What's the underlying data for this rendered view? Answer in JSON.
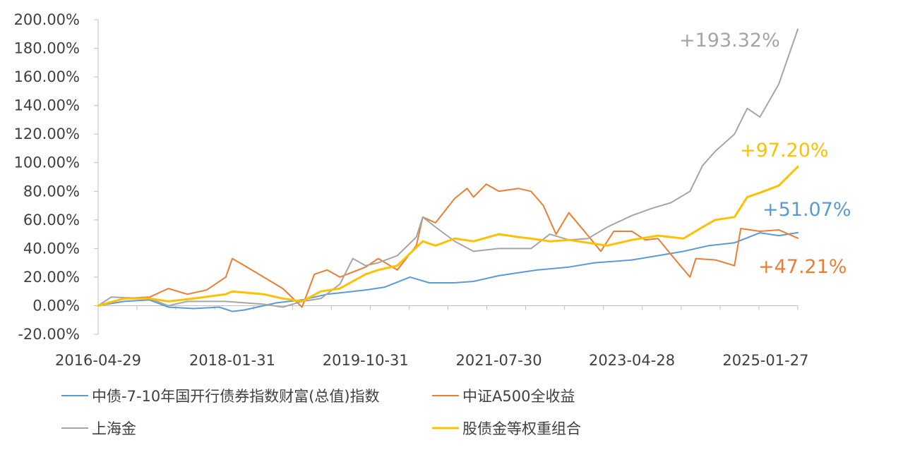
{
  "chart_data": {
    "type": "line",
    "x_start": "2016-04-29",
    "x_end": "2025-06-30",
    "x_ticks": [
      "2016-04-29",
      "2018-01-31",
      "2019-10-31",
      "2021-07-30",
      "2023-04-28",
      "2025-01-27"
    ],
    "ylim": [
      -20,
      200
    ],
    "y_ticks": [
      -20,
      0,
      20,
      40,
      60,
      80,
      100,
      120,
      140,
      160,
      180,
      200
    ],
    "y_tick_labels": [
      "-20.00%",
      "0.00%",
      "20.00%",
      "40.00%",
      "60.00%",
      "80.00%",
      "100.00%",
      "120.00%",
      "140.00%",
      "160.00%",
      "180.00%",
      "200.00%"
    ],
    "grid": false,
    "legend_position": "bottom",
    "series": [
      {
        "name": "中债-7-10年国开行债券指数财富(总值)指数",
        "color": "#5b9bd5",
        "end_label": "+51.07%",
        "points": [
          [
            "2016-04-29",
            0
          ],
          [
            "2016-08-31",
            3
          ],
          [
            "2016-12-31",
            4
          ],
          [
            "2017-03-31",
            -1
          ],
          [
            "2017-07-31",
            -2
          ],
          [
            "2017-11-30",
            -1
          ],
          [
            "2018-01-31",
            -4
          ],
          [
            "2018-03-31",
            -3
          ],
          [
            "2018-08-31",
            2
          ],
          [
            "2018-12-31",
            4
          ],
          [
            "2019-04-30",
            8
          ],
          [
            "2019-08-31",
            10
          ],
          [
            "2019-10-31",
            11
          ],
          [
            "2020-01-31",
            13
          ],
          [
            "2020-05-31",
            20
          ],
          [
            "2020-08-31",
            16
          ],
          [
            "2020-12-31",
            16
          ],
          [
            "2021-03-31",
            17
          ],
          [
            "2021-07-30",
            21
          ],
          [
            "2021-10-31",
            23
          ],
          [
            "2022-01-31",
            25
          ],
          [
            "2022-06-30",
            27
          ],
          [
            "2022-10-31",
            30
          ],
          [
            "2023-01-31",
            31
          ],
          [
            "2023-04-28",
            32
          ],
          [
            "2023-08-31",
            35
          ],
          [
            "2023-12-31",
            38
          ],
          [
            "2024-04-30",
            42
          ],
          [
            "2024-08-31",
            44
          ],
          [
            "2024-12-31",
            51
          ],
          [
            "2025-03-31",
            49
          ],
          [
            "2025-06-30",
            51.07
          ]
        ]
      },
      {
        "name": "中证A500全收益",
        "color": "#ed7d31",
        "end_label": "+47.21%",
        "points": [
          [
            "2016-04-29",
            0
          ],
          [
            "2016-08-31",
            5
          ],
          [
            "2016-12-31",
            6
          ],
          [
            "2017-03-31",
            12
          ],
          [
            "2017-06-30",
            8
          ],
          [
            "2017-09-30",
            11
          ],
          [
            "2017-12-31",
            20
          ],
          [
            "2018-01-31",
            33
          ],
          [
            "2018-03-31",
            28
          ],
          [
            "2018-06-30",
            20
          ],
          [
            "2018-09-30",
            12
          ],
          [
            "2018-12-31",
            -1
          ],
          [
            "2019-02-28",
            22
          ],
          [
            "2019-04-30",
            25
          ],
          [
            "2019-06-30",
            20
          ],
          [
            "2019-10-31",
            27
          ],
          [
            "2019-12-31",
            33
          ],
          [
            "2020-03-31",
            25
          ],
          [
            "2020-06-30",
            42
          ],
          [
            "2020-07-31",
            62
          ],
          [
            "2020-09-30",
            58
          ],
          [
            "2020-12-31",
            75
          ],
          [
            "2021-02-28",
            82
          ],
          [
            "2021-03-31",
            76
          ],
          [
            "2021-05-31",
            85
          ],
          [
            "2021-07-30",
            80
          ],
          [
            "2021-10-31",
            82
          ],
          [
            "2021-12-31",
            80
          ],
          [
            "2022-02-28",
            70
          ],
          [
            "2022-04-30",
            50
          ],
          [
            "2022-06-30",
            65
          ],
          [
            "2022-09-30",
            49
          ],
          [
            "2022-11-30",
            38
          ],
          [
            "2023-01-31",
            52
          ],
          [
            "2023-04-28",
            52
          ],
          [
            "2023-06-30",
            46
          ],
          [
            "2023-08-31",
            47
          ],
          [
            "2023-10-31",
            36
          ],
          [
            "2024-01-31",
            20
          ],
          [
            "2024-02-28",
            33
          ],
          [
            "2024-05-31",
            32
          ],
          [
            "2024-08-31",
            28
          ],
          [
            "2024-09-30",
            54
          ],
          [
            "2024-12-31",
            52
          ],
          [
            "2025-03-31",
            53
          ],
          [
            "2025-06-30",
            47.21
          ]
        ]
      },
      {
        "name": "上海金",
        "color": "#a5a5a5",
        "end_label": "+193.32%",
        "points": [
          [
            "2016-04-29",
            0
          ],
          [
            "2016-06-30",
            6
          ],
          [
            "2016-12-31",
            5
          ],
          [
            "2017-03-31",
            0
          ],
          [
            "2017-06-30",
            3
          ],
          [
            "2017-12-31",
            3
          ],
          [
            "2018-03-31",
            2
          ],
          [
            "2018-06-30",
            1
          ],
          [
            "2018-09-30",
            -1
          ],
          [
            "2018-12-31",
            3
          ],
          [
            "2019-03-31",
            5
          ],
          [
            "2019-06-30",
            15
          ],
          [
            "2019-08-31",
            33
          ],
          [
            "2019-10-31",
            28
          ],
          [
            "2019-12-31",
            30
          ],
          [
            "2020-03-31",
            35
          ],
          [
            "2020-06-30",
            48
          ],
          [
            "2020-07-31",
            62
          ],
          [
            "2020-09-30",
            55
          ],
          [
            "2020-12-31",
            45
          ],
          [
            "2021-03-31",
            38
          ],
          [
            "2021-07-30",
            40
          ],
          [
            "2021-10-31",
            40
          ],
          [
            "2021-12-31",
            40
          ],
          [
            "2022-03-31",
            50
          ],
          [
            "2022-06-30",
            46
          ],
          [
            "2022-09-30",
            47
          ],
          [
            "2022-12-31",
            55
          ],
          [
            "2023-04-28",
            63
          ],
          [
            "2023-07-31",
            68
          ],
          [
            "2023-10-31",
            72
          ],
          [
            "2024-01-31",
            80
          ],
          [
            "2024-03-31",
            98
          ],
          [
            "2024-05-31",
            108
          ],
          [
            "2024-08-31",
            120
          ],
          [
            "2024-10-31",
            138
          ],
          [
            "2024-12-31",
            132
          ],
          [
            "2025-03-31",
            155
          ],
          [
            "2025-06-30",
            193.32
          ]
        ]
      },
      {
        "name": "股债金等权重组合",
        "color": "#ffc000",
        "end_label": "+97.20%",
        "points": [
          [
            "2016-04-29",
            0
          ],
          [
            "2016-08-31",
            5
          ],
          [
            "2016-12-31",
            5
          ],
          [
            "2017-03-31",
            3
          ],
          [
            "2017-07-31",
            5
          ],
          [
            "2017-12-31",
            8
          ],
          [
            "2018-01-31",
            10
          ],
          [
            "2018-06-30",
            8
          ],
          [
            "2018-09-30",
            5
          ],
          [
            "2018-12-31",
            3
          ],
          [
            "2019-03-31",
            10
          ],
          [
            "2019-06-30",
            12
          ],
          [
            "2019-10-31",
            22
          ],
          [
            "2019-12-31",
            25
          ],
          [
            "2020-03-31",
            28
          ],
          [
            "2020-07-31",
            45
          ],
          [
            "2020-09-30",
            42
          ],
          [
            "2020-12-31",
            47
          ],
          [
            "2021-03-31",
            45
          ],
          [
            "2021-07-30",
            50
          ],
          [
            "2021-10-31",
            48
          ],
          [
            "2021-12-31",
            47
          ],
          [
            "2022-03-31",
            45
          ],
          [
            "2022-06-30",
            46
          ],
          [
            "2022-09-30",
            44
          ],
          [
            "2022-12-31",
            42
          ],
          [
            "2023-04-28",
            46
          ],
          [
            "2023-08-31",
            49
          ],
          [
            "2023-12-31",
            47
          ],
          [
            "2024-03-31",
            55
          ],
          [
            "2024-05-31",
            60
          ],
          [
            "2024-08-31",
            62
          ],
          [
            "2024-10-31",
            76
          ],
          [
            "2024-12-31",
            79
          ],
          [
            "2025-03-31",
            84
          ],
          [
            "2025-06-30",
            97.2
          ]
        ]
      }
    ]
  }
}
